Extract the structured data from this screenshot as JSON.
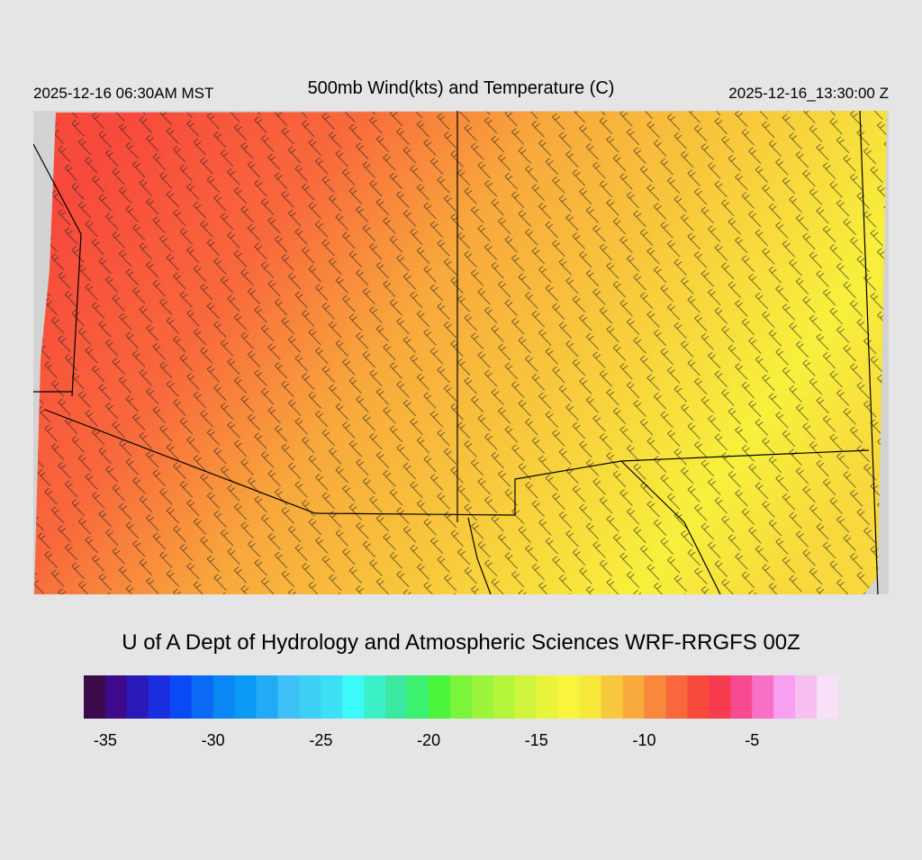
{
  "header": {
    "left": "2025-12-16 06:30AM MST",
    "title": "500mb Wind(kts) and Temperature (C)",
    "right": "2025-12-16_13:30:00 Z"
  },
  "credit": "U of A Dept of Hydrology and Atmospheric Sciences WRF-RRGFS 00Z",
  "colorbar": {
    "clim": [
      -36,
      -1
    ],
    "ticks": [
      -35,
      -30,
      -25,
      -20,
      -15,
      -10,
      -5
    ],
    "colors": [
      "#3a0a4a",
      "#3d0a8c",
      "#2a1ab8",
      "#1a2ee0",
      "#0a4af5",
      "#0a6af5",
      "#0a86f5",
      "#0a9af5",
      "#22aaf5",
      "#3cc0f5",
      "#3cd0f5",
      "#3ce0f5",
      "#3cfafa",
      "#3cf0c8",
      "#3ce8a0",
      "#3cf070",
      "#4af53c",
      "#7af53c",
      "#9af53c",
      "#b4f53c",
      "#d0f53c",
      "#e8f53c",
      "#f8f53c",
      "#f8e83c",
      "#f8c83c",
      "#f8aa3c",
      "#f8883c",
      "#f8683c",
      "#f84a3c",
      "#f83c50",
      "#f84a90",
      "#f870c8",
      "#f8a0f0",
      "#f8c0f0",
      "#f8e0f8"
    ]
  }
}
